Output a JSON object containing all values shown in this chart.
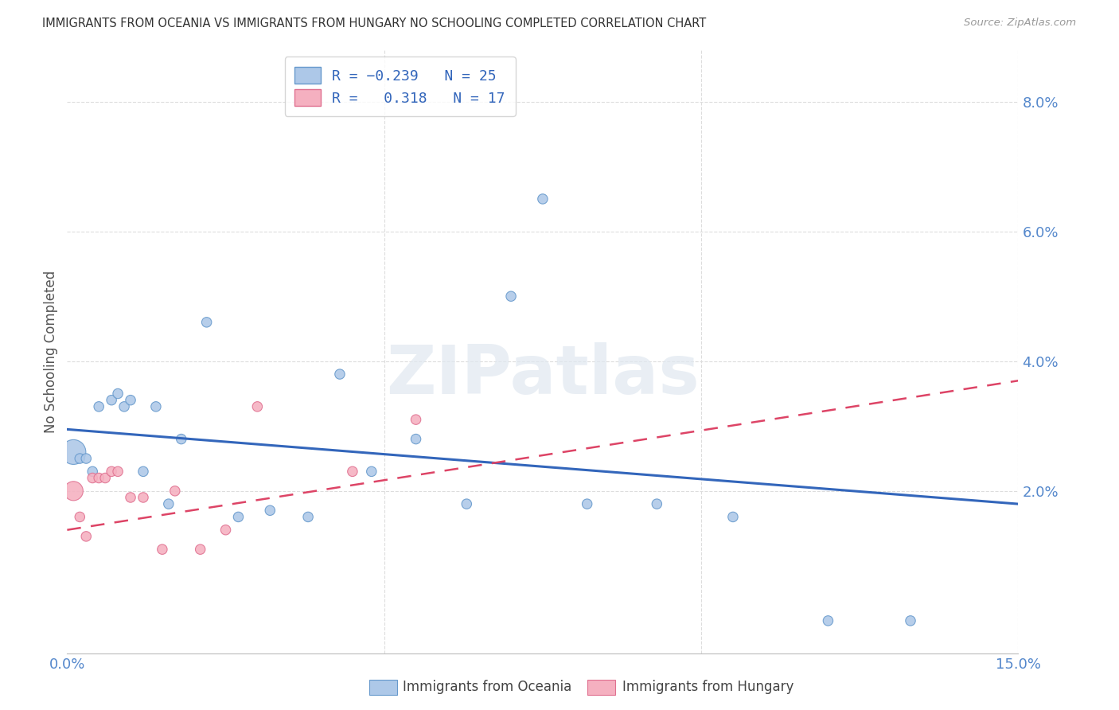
{
  "title": "IMMIGRANTS FROM OCEANIA VS IMMIGRANTS FROM HUNGARY NO SCHOOLING COMPLETED CORRELATION CHART",
  "source": "Source: ZipAtlas.com",
  "ylabel": "No Schooling Completed",
  "xlim": [
    0.0,
    0.15
  ],
  "ylim": [
    -0.005,
    0.088
  ],
  "yticks": [
    0.0,
    0.02,
    0.04,
    0.06,
    0.08
  ],
  "ytick_labels": [
    "",
    "2.0%",
    "4.0%",
    "6.0%",
    "8.0%"
  ],
  "xticks": [
    0.0,
    0.05,
    0.1,
    0.15
  ],
  "xtick_labels": [
    "0.0%",
    "",
    "",
    "15.0%"
  ],
  "oceania_color": "#adc8e8",
  "hungary_color": "#f5b0c0",
  "oceania_edge": "#6699cc",
  "hungary_edge": "#e07090",
  "trend_oceania_color": "#3366bb",
  "trend_hungary_color": "#dd4466",
  "label_oceania": "Immigrants from Oceania",
  "label_hungary": "Immigrants from Hungary",
  "watermark": "ZIPatlas",
  "background_color": "#ffffff",
  "grid_color": "#dddddd",
  "title_color": "#333333",
  "axis_label_color": "#5588cc",
  "oceania_x": [
    0.001,
    0.002,
    0.003,
    0.004,
    0.005,
    0.007,
    0.008,
    0.009,
    0.01,
    0.012,
    0.014,
    0.016,
    0.018,
    0.022,
    0.027,
    0.032,
    0.038,
    0.043,
    0.048,
    0.055,
    0.063,
    0.07,
    0.075,
    0.082,
    0.093,
    0.105,
    0.12,
    0.133
  ],
  "oceania_y": [
    0.026,
    0.025,
    0.025,
    0.023,
    0.033,
    0.034,
    0.035,
    0.033,
    0.034,
    0.023,
    0.033,
    0.018,
    0.028,
    0.046,
    0.016,
    0.017,
    0.016,
    0.038,
    0.023,
    0.028,
    0.018,
    0.05,
    0.065,
    0.018,
    0.018,
    0.016,
    0.0,
    0.0
  ],
  "oceania_size": [
    500,
    80,
    80,
    80,
    80,
    80,
    80,
    80,
    80,
    80,
    80,
    80,
    80,
    80,
    80,
    80,
    80,
    80,
    80,
    80,
    80,
    80,
    80,
    80,
    80,
    80,
    80,
    80
  ],
  "hungary_x": [
    0.001,
    0.002,
    0.003,
    0.004,
    0.005,
    0.006,
    0.007,
    0.008,
    0.01,
    0.012,
    0.015,
    0.017,
    0.021,
    0.025,
    0.03,
    0.045,
    0.055
  ],
  "hungary_y": [
    0.02,
    0.016,
    0.013,
    0.022,
    0.022,
    0.022,
    0.023,
    0.023,
    0.019,
    0.019,
    0.011,
    0.02,
    0.011,
    0.014,
    0.033,
    0.023,
    0.031
  ],
  "hungary_size": [
    300,
    80,
    80,
    80,
    80,
    80,
    80,
    80,
    80,
    80,
    80,
    80,
    80,
    80,
    80,
    80,
    80
  ],
  "trend_oceania_start_y": 0.0295,
  "trend_oceania_end_y": 0.018,
  "trend_hungary_start_y": 0.014,
  "trend_hungary_end_y": 0.037
}
